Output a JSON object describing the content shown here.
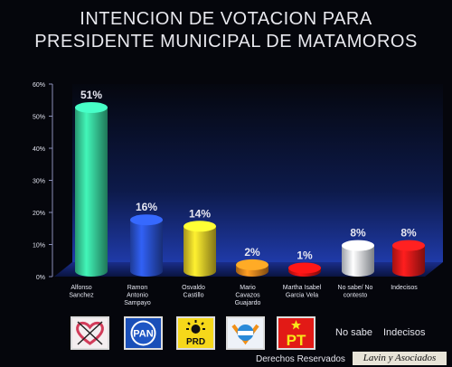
{
  "title_line1": "INTENCION DE VOTACION PARA",
  "title_line2": "PRESIDENTE MUNICIPAL DE MATAMOROS",
  "chart_data": {
    "type": "bar",
    "title": "INTENCION DE VOTACION PARA PRESIDENTE MUNICIPAL DE MATAMOROS",
    "categories": [
      "Alfonso|Sanchez",
      "Ramon|Antonio|Sampayo",
      "Osvaldo|Castillo",
      "Mario|Cavazos|Guajardo",
      "Martha Isabel|Garcia Vela",
      "No sabe/ No|contesto",
      "Indecisos"
    ],
    "values": [
      51,
      16,
      14,
      2,
      1,
      8,
      8
    ],
    "data_labels": [
      "51%",
      "16%",
      "14%",
      "2%",
      "1%",
      "8%",
      "8%"
    ],
    "ylim": [
      0,
      60
    ],
    "yticks": [
      "0%",
      "10%",
      "20%",
      "30%",
      "40%",
      "50%",
      "60%"
    ],
    "colors": [
      "#39d6a0",
      "#2b54d6",
      "#ecd22a",
      "#e8891e",
      "#e41212",
      "#dfe6f2",
      "#e61a1a"
    ],
    "xlabel": "",
    "ylabel": ""
  },
  "legend": {
    "no_sabe": "No sabe",
    "indecisos": "Indecisos",
    "logos": [
      "PAN",
      "PRD",
      "PT"
    ]
  },
  "footer": {
    "rights": "Derechos Reservados",
    "brand": "Lavin y Asociados"
  }
}
